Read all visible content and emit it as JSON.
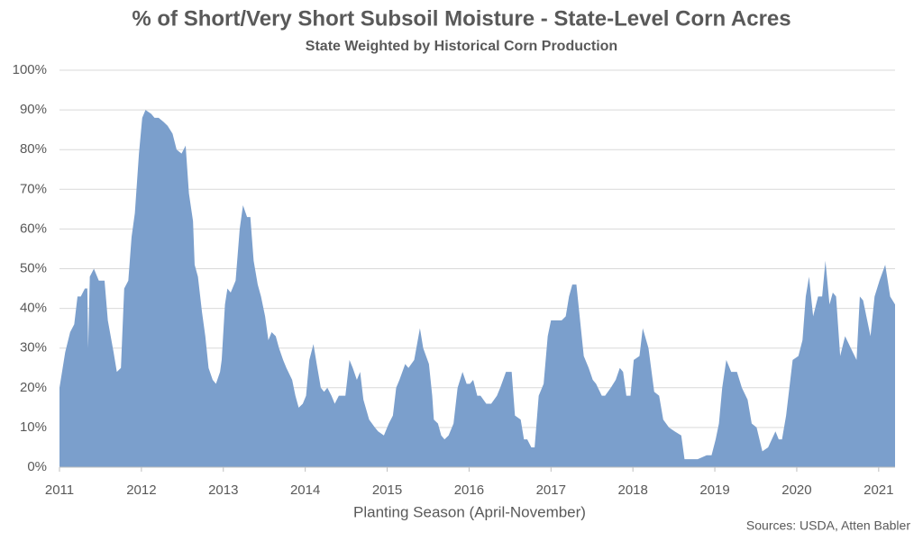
{
  "chart_data": {
    "type": "area",
    "title": "% of Short/Very Short Subsoil Moisture - State-Level Corn Acres",
    "subtitle": "State Weighted by Historical Corn Production",
    "x_label": "Planting Season (April-November)",
    "source": "Sources: USDA, Atten Babler",
    "x": [
      2011.0,
      2011.07,
      2011.13,
      2011.18,
      2011.22,
      2011.26,
      2011.31,
      2011.34,
      2011.35,
      2011.37,
      2011.42,
      2011.48,
      2011.55,
      2011.59,
      2011.66,
      2011.7,
      2011.75,
      2011.79,
      2011.84,
      2011.88,
      2011.92,
      2011.97,
      2012.01,
      2012.05,
      2012.12,
      2012.16,
      2012.21,
      2012.27,
      2012.32,
      2012.38,
      2012.43,
      2012.49,
      2012.54,
      2012.58,
      2012.63,
      2012.65,
      2012.69,
      2012.74,
      2012.78,
      2012.82,
      2012.87,
      2012.91,
      2012.96,
      2012.98,
      2013.02,
      2013.05,
      2013.09,
      2013.15,
      2013.2,
      2013.24,
      2013.29,
      2013.33,
      2013.37,
      2013.42,
      2013.46,
      2013.51,
      2013.55,
      2013.59,
      2013.64,
      2013.68,
      2013.73,
      2013.77,
      2013.84,
      2013.88,
      2013.92,
      2013.97,
      2014.01,
      2014.05,
      2014.1,
      2014.14,
      2014.19,
      2014.23,
      2014.27,
      2014.32,
      2014.36,
      2014.41,
      2014.45,
      2014.49,
      2014.54,
      2014.58,
      2014.63,
      2014.67,
      2014.71,
      2014.78,
      2014.85,
      2014.89,
      2014.96,
      2015.02,
      2015.07,
      2015.11,
      2015.15,
      2015.22,
      2015.26,
      2015.33,
      2015.4,
      2015.44,
      2015.51,
      2015.55,
      2015.57,
      2015.62,
      2015.66,
      2015.7,
      2015.75,
      2015.81,
      2015.86,
      2015.92,
      2015.97,
      2016.01,
      2016.05,
      2016.1,
      2016.14,
      2016.21,
      2016.27,
      2016.34,
      2016.38,
      2016.45,
      2016.52,
      2016.56,
      2016.63,
      2016.67,
      2016.71,
      2016.76,
      2016.8,
      2016.85,
      2016.91,
      2016.96,
      2017.0,
      2017.07,
      2017.13,
      2017.18,
      2017.22,
      2017.26,
      2017.31,
      2017.4,
      2017.46,
      2017.51,
      2017.55,
      2017.62,
      2017.66,
      2017.73,
      2017.79,
      2017.84,
      2017.88,
      2017.92,
      2017.97,
      2018.01,
      2018.08,
      2018.12,
      2018.19,
      2018.26,
      2018.32,
      2018.37,
      2018.44,
      2018.51,
      2018.59,
      2018.63,
      2018.7,
      2018.79,
      2018.9,
      2018.96,
      2019.01,
      2019.05,
      2019.09,
      2019.14,
      2019.2,
      2019.27,
      2019.33,
      2019.4,
      2019.45,
      2019.51,
      2019.58,
      2019.65,
      2019.74,
      2019.78,
      2019.82,
      2019.87,
      2019.91,
      2019.95,
      2020.02,
      2020.07,
      2020.11,
      2020.15,
      2020.2,
      2020.26,
      2020.31,
      2020.35,
      2020.4,
      2020.44,
      2020.48,
      2020.53,
      2020.59,
      2020.66,
      2020.73,
      2020.77,
      2020.81,
      2020.86,
      2020.9,
      2020.95,
      2021.01,
      2021.08,
      2021.14,
      2021.2
    ],
    "series": [
      {
        "color": "#7b9fcc",
        "values": [
          20,
          29,
          34,
          36,
          43,
          43,
          45,
          45,
          30,
          48,
          50,
          47,
          47,
          37,
          29,
          24,
          25,
          45,
          47,
          58,
          64,
          79,
          88,
          90,
          89,
          88,
          88,
          87,
          86,
          84,
          80,
          79,
          81,
          69,
          62,
          51,
          48,
          39,
          33,
          25,
          22,
          21,
          24,
          27,
          41,
          45,
          44,
          47,
          60,
          66,
          63,
          63,
          52,
          46,
          43,
          38,
          32,
          34,
          33,
          30,
          27,
          25,
          22,
          18,
          15,
          16,
          18,
          27,
          31,
          26,
          20,
          19,
          20,
          18,
          16,
          18,
          18,
          18,
          27,
          25,
          22,
          24,
          17,
          12,
          10,
          9,
          8,
          11,
          13,
          20,
          22,
          26,
          25,
          27,
          35,
          30,
          26,
          18,
          12,
          11,
          8,
          7,
          8,
          11,
          20,
          24,
          21,
          21,
          22,
          18,
          18,
          16,
          16,
          18,
          20,
          24,
          24,
          13,
          12,
          7,
          7,
          5,
          5,
          18,
          21,
          33,
          37,
          37,
          37,
          38,
          43,
          46,
          46,
          28,
          25,
          22,
          21,
          18,
          18,
          20,
          22,
          25,
          24,
          18,
          18,
          27,
          28,
          35,
          30,
          19,
          18,
          12,
          10,
          9,
          8,
          2,
          2,
          2,
          3,
          3,
          7,
          11,
          20,
          27,
          24,
          24,
          20,
          17,
          11,
          10,
          4,
          5,
          9,
          7,
          7,
          13,
          20,
          27,
          28,
          32,
          43,
          48,
          38,
          43,
          43,
          52,
          41,
          44,
          43,
          28,
          33,
          30,
          27,
          43,
          42,
          37,
          33,
          43,
          47,
          51,
          43,
          41
        ]
      }
    ],
    "xlim": [
      2011,
      2021.2
    ],
    "xticks": [
      2011,
      2012,
      2013,
      2014,
      2015,
      2016,
      2017,
      2018,
      2019,
      2020,
      2021
    ],
    "ylim": [
      0,
      100
    ],
    "yticks": [
      {
        "value": 0,
        "label": "0%"
      },
      {
        "value": 10,
        "label": "10%"
      },
      {
        "value": 20,
        "label": "20%"
      },
      {
        "value": 30,
        "label": "30%"
      },
      {
        "value": 40,
        "label": "40%"
      },
      {
        "value": 50,
        "label": "50%"
      },
      {
        "value": 60,
        "label": "60%"
      },
      {
        "value": 70,
        "label": "70%"
      },
      {
        "value": 80,
        "label": "80%"
      },
      {
        "value": 90,
        "label": "90%"
      },
      {
        "value": 100,
        "label": "100%"
      }
    ],
    "grid": true
  }
}
